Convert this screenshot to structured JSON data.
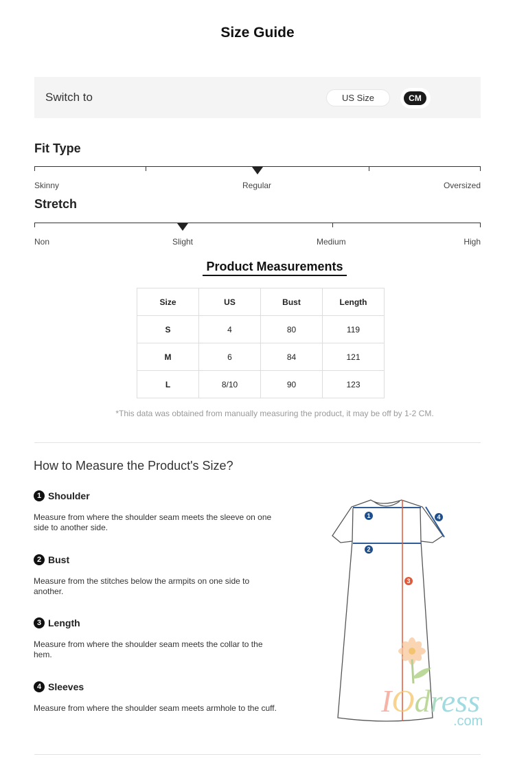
{
  "title": "Size Guide",
  "switch": {
    "label": "Switch to",
    "options": [
      "US Size",
      "CM"
    ],
    "selected": "CM"
  },
  "fit_type": {
    "title": "Fit Type",
    "labels": [
      "Skinny",
      "Regular",
      "Oversized"
    ],
    "selected": "Regular"
  },
  "stretch": {
    "title": "Stretch",
    "labels": [
      "Non",
      "Slight",
      "Medium",
      "High"
    ],
    "selected": "Slight"
  },
  "measurements": {
    "title": "Product Measurements",
    "headers": [
      "Size",
      "US",
      "Bust",
      "Length"
    ],
    "rows": [
      [
        "S",
        "4",
        "80",
        "119"
      ],
      [
        "M",
        "6",
        "84",
        "121"
      ],
      [
        "L",
        "8/10",
        "90",
        "123"
      ]
    ],
    "note": "*This data was obtained from manually measuring the product, it may be off by 1-2 CM."
  },
  "howto": {
    "title": "How to Measure the Product's Size?",
    "items": [
      {
        "num": "1",
        "title": "Shoulder",
        "desc": "Measure from where the shoulder seam meets the sleeve on one side to another side."
      },
      {
        "num": "2",
        "title": "Bust",
        "desc": "Measure from the stitches below the armpits on one side to another."
      },
      {
        "num": "3",
        "title": "Length",
        "desc": "Measure from where the shoulder seam meets the collar to the hem."
      },
      {
        "num": "4",
        "title": "Sleeves",
        "desc": "Measure from where the shoulder seam meets armhole to the cuff."
      }
    ]
  },
  "watermark": {
    "text": "IOdress",
    ".com": ".com"
  },
  "colors": {
    "marker_blue": "#1f4e8c",
    "length_red": "#e0593a"
  }
}
